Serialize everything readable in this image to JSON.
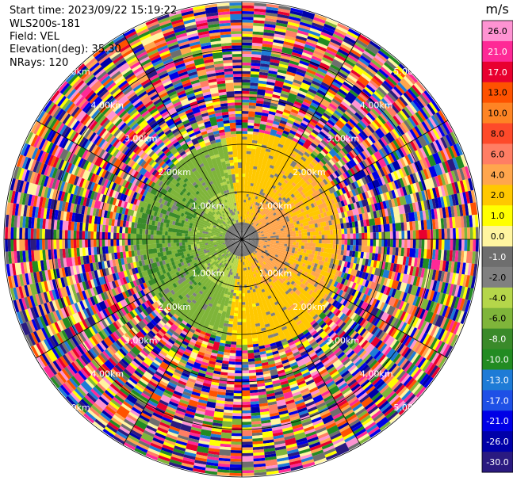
{
  "header": {
    "start_time": "Start time: 2023/09/22 15:19:22",
    "instrument": "WLS200s-181",
    "field": "Field: VEL",
    "elevation": "Elevation(deg): 35.30",
    "nrays": "NRays: 120"
  },
  "chart_data": {
    "type": "heatmap",
    "subtype": "ppi-polar",
    "field": "VEL",
    "units": "m/s",
    "n_rays": 120,
    "range_rings_km": [
      1,
      2,
      3,
      4,
      5
    ],
    "ring_labels": [
      "1.00km",
      "2.00km",
      "3.00km",
      "4.00km",
      "5.00km"
    ],
    "azimuth_lines_deg": [
      0,
      30,
      60,
      90,
      120,
      150,
      180,
      210,
      240,
      270,
      300,
      330
    ],
    "max_range_km": 5.0,
    "colorbar": {
      "title": "m/s",
      "levels": [
        30.0,
        26.0,
        21.0,
        17.0,
        13.0,
        10.0,
        8.0,
        6.0,
        4.0,
        2.0,
        1.0,
        0.0,
        -1.0,
        -2.0,
        -4.0,
        -6.0,
        -8.0,
        -10.0,
        -13.0,
        -17.0,
        -21.0,
        -26.0,
        -30.0
      ],
      "tick_labels": [
        "26.0",
        "21.0",
        "17.0",
        "13.0",
        "10.0",
        "8.0",
        "6.0",
        "4.0",
        "2.0",
        "1.0",
        "0.0",
        "-1.0",
        "-2.0",
        "-4.0",
        "-6.0",
        "-8.0",
        "-10.0",
        "-13.0",
        "-17.0",
        "-21.0",
        "-26.0",
        "-30.0"
      ],
      "colors": [
        "#fe93d2",
        "#fe2996",
        "#e8002f",
        "#fe5200",
        "#fe8424",
        "#fe4a2a",
        "#ff7e64",
        "#ffa64d",
        "#ffc800",
        "#ffff00",
        "#fff5a0",
        "#6e6e6e",
        "#808080",
        "#b5d64a",
        "#7fb53a",
        "#3a8a2a",
        "#228b22",
        "#1e7bd6",
        "#1e50e6",
        "#0000e6",
        "#0000a8",
        "#2a1a80"
      ]
    },
    "regions": [
      {
        "from_km": 0.0,
        "to_km": 0.35,
        "value": 0.0
      },
      {
        "from_km": 0.35,
        "to_km": 1.1,
        "value": -3.0,
        "sector": "west",
        "note": ""
      },
      {
        "from_km": 0.35,
        "to_km": 1.1,
        "value": 3.0,
        "sector": "east",
        "note": ""
      },
      {
        "from_km": 1.1,
        "to_km": 2.2,
        "value": -5.0,
        "sector": "west",
        "note": ""
      },
      {
        "from_km": 1.1,
        "to_km": 2.2,
        "value": 4.0,
        "sector": "east",
        "note": ""
      },
      {
        "from_km": 2.2,
        "to_km": 5.0,
        "value": "noise"
      }
    ]
  }
}
